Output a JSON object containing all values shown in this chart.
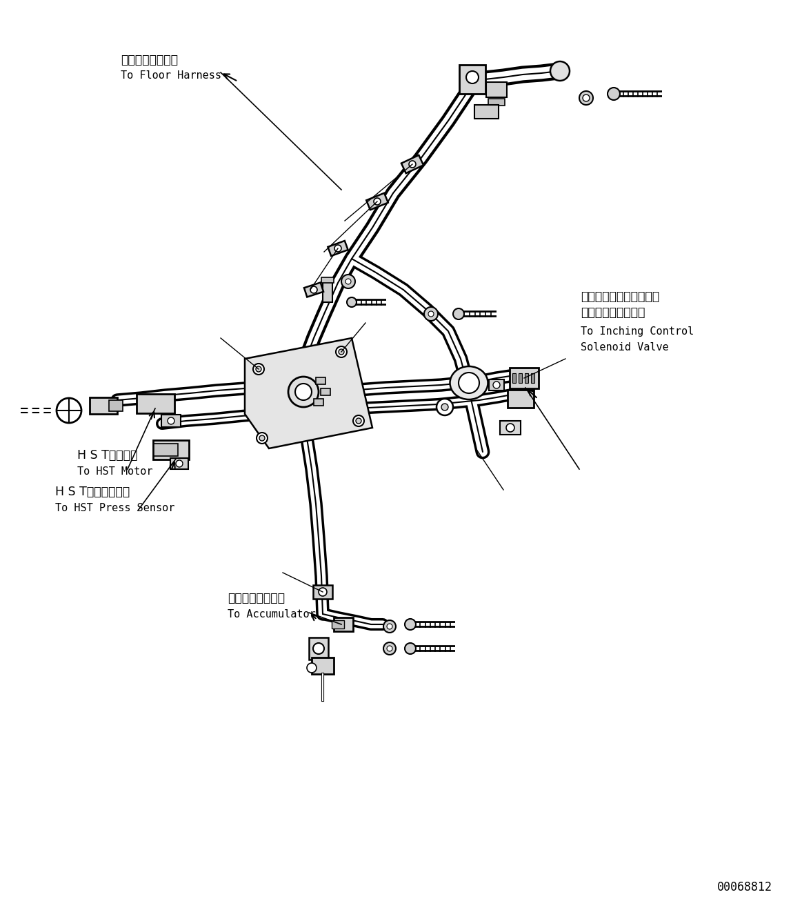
{
  "bg_color": "#ffffff",
  "lc": "#000000",
  "fig_width": 11.63,
  "fig_height": 13.19,
  "dpi": 100,
  "part_number": "00068812",
  "labels": {
    "floor_jp": "フロアハーネスへ",
    "floor_en": "To Floor Harness",
    "inching_jp1": "インチングコントロール",
    "inching_jp2": "ソレノイドバルブへ",
    "inching_en1": "To Inching Control",
    "inching_en2": "Solenoid Valve",
    "hst_motor_jp": "H S Tモータへ",
    "hst_motor_en": "To HST Motor",
    "hst_press_jp": "H S T油圧センサへ",
    "hst_press_en": "To HST Press Sensor",
    "accum_jp": "アキュムレータへ",
    "accum_en": "To Accumulator"
  }
}
